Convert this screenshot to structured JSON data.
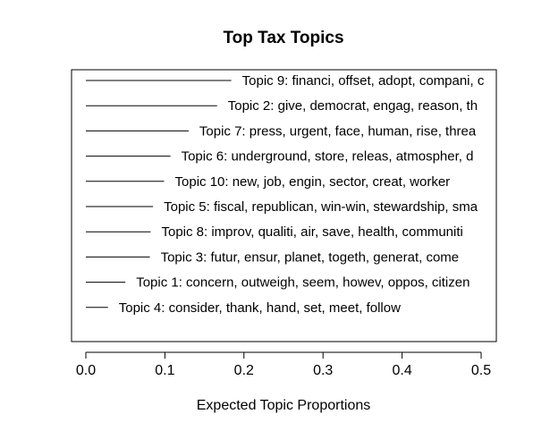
{
  "chart_data": {
    "type": "bar",
    "title": "Top Tax Topics",
    "xlabel": "Expected Topic Proportions",
    "ylabel": "",
    "xlim": [
      0,
      0.52
    ],
    "xticks": [
      0.0,
      0.1,
      0.2,
      0.3,
      0.4,
      0.5
    ],
    "xtick_labels": [
      "0.0",
      "0.1",
      "0.2",
      "0.3",
      "0.4",
      "0.5"
    ],
    "orientation": "horizontal",
    "grid": false,
    "topics": [
      {
        "label": "Topic 9: financi, offset, adopt, compani, c",
        "value": 0.184
      },
      {
        "label": "Topic 2: give, democrat, engag, reason, th",
        "value": 0.166
      },
      {
        "label": "Topic 7: press, urgent, face, human, rise, threa",
        "value": 0.13
      },
      {
        "label": "Topic 6: underground, store, releas, atmospher, d",
        "value": 0.107
      },
      {
        "label": "Topic 10: new, job, engin, sector, creat, worker",
        "value": 0.099
      },
      {
        "label": "Topic 5: fiscal, republican, win-win, stewardship, sma",
        "value": 0.085
      },
      {
        "label": "Topic 8: improv, qualiti, air, save, health, communiti",
        "value": 0.082
      },
      {
        "label": "Topic 3: futur, ensur, planet, togeth, generat, come",
        "value": 0.081
      },
      {
        "label": "Topic 1: concern, outweigh, seem, howev, oppos, citizen",
        "value": 0.05
      },
      {
        "label": "Topic 4: consider, thank, hand, set, meet, follow",
        "value": 0.028
      }
    ]
  }
}
